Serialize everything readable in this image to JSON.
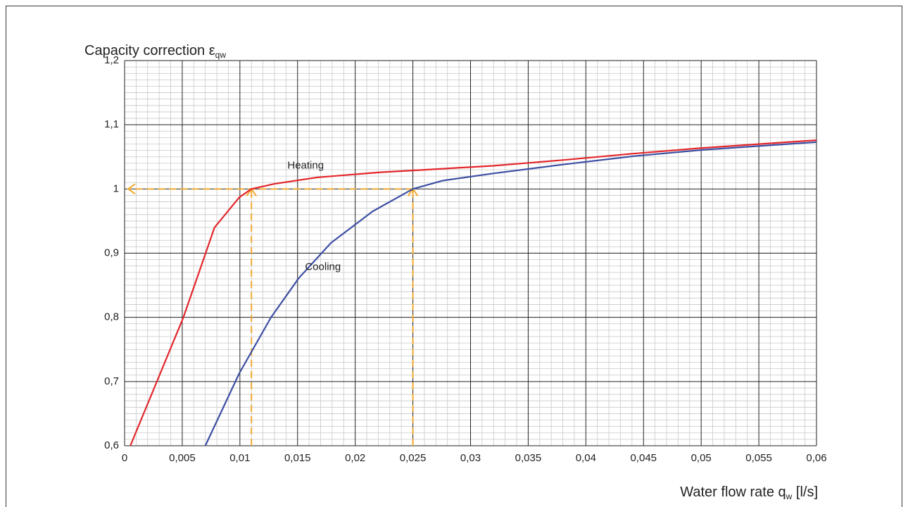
{
  "chart_data": {
    "type": "line",
    "title": {
      "text": "Capacity correction ε",
      "sub": "qw"
    },
    "xlabel": {
      "text": "Water flow rate q",
      "sub": "w",
      "suffix": " [l/s]"
    },
    "xlim": [
      0,
      0.06
    ],
    "ylim": [
      0.6,
      1.2
    ],
    "xticks": [
      0,
      {
        "value": 0.005,
        "label": "0,005"
      },
      {
        "value": 0.01,
        "label": "0,01"
      },
      {
        "value": 0.015,
        "label": "0,015"
      },
      {
        "value": 0.02,
        "label": "0,02"
      },
      {
        "value": 0.025,
        "label": "0,025"
      },
      {
        "value": 0.03,
        "label": "0,03"
      },
      {
        "value": 0.035,
        "label": "0,035"
      },
      {
        "value": 0.04,
        "label": "0,04"
      },
      {
        "value": 0.045,
        "label": "0,045"
      },
      {
        "value": 0.05,
        "label": "0,05"
      },
      {
        "value": 0.055,
        "label": "0,055"
      },
      {
        "value": 0.06,
        "label": "0,06"
      }
    ],
    "yticks": [
      {
        "value": 0.6,
        "label": "0,6"
      },
      {
        "value": 0.7,
        "label": "0,7"
      },
      {
        "value": 0.8,
        "label": "0,8"
      },
      {
        "value": 0.9,
        "label": "0,9"
      },
      1,
      {
        "value": 1.1,
        "label": "1,1"
      },
      {
        "value": 1.2,
        "label": "1,2"
      }
    ],
    "grid": true,
    "series": [
      {
        "name": "Heating",
        "color": "#e3262b",
        "x": [
          0.0005,
          0.0051,
          0.0078,
          0.00995,
          0.011,
          0.013,
          0.0167,
          0.0222,
          0.0252,
          0.0319,
          0.038,
          0.0441,
          0.0502,
          0.06
        ],
        "values": [
          0.6,
          0.8,
          0.94,
          0.987,
          1.0,
          1.008,
          1.018,
          1.026,
          1.029,
          1.036,
          1.045,
          1.055,
          1.064,
          1.076
        ]
      },
      {
        "name": "Cooling",
        "color": "#3d4fa3",
        "x": [
          0.007,
          0.00995,
          0.0127,
          0.0151,
          0.0179,
          0.0215,
          0.025,
          0.0276,
          0.0319,
          0.038,
          0.0441,
          0.0502,
          0.06
        ],
        "values": [
          0.6,
          0.713,
          0.8,
          0.861,
          0.916,
          0.965,
          1.0,
          1.013,
          1.024,
          1.038,
          1.051,
          1.061,
          1.073
        ]
      }
    ],
    "annotations": [
      {
        "text": "Heating",
        "x": 0.0157,
        "y": 1.036
      },
      {
        "text": "Cooling",
        "x": 0.0172,
        "y": 0.878
      }
    ],
    "guides": {
      "color": "#f0a830",
      "points": [
        {
          "x": 0.011,
          "y": 1
        },
        {
          "x": 0.025,
          "y": 1
        }
      ]
    }
  }
}
